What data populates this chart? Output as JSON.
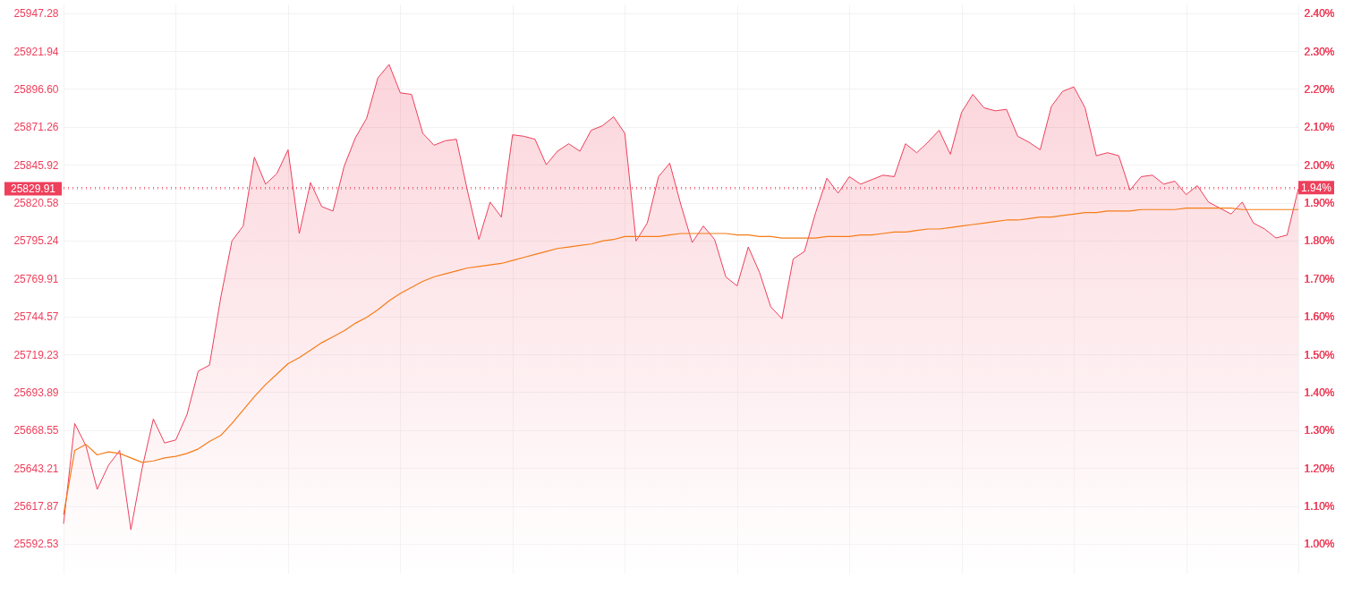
{
  "chart_data": {
    "type": "area",
    "categories": [
      null,
      null,
      null,
      null,
      null,
      null,
      null,
      null,
      null,
      null,
      null,
      null,
      null,
      null,
      null,
      null,
      null,
      null,
      null,
      null,
      null,
      null,
      null,
      null,
      null,
      null,
      null,
      null,
      null,
      null,
      null,
      null,
      null,
      null,
      null,
      null,
      null,
      null,
      null,
      null,
      null,
      null,
      null,
      null,
      null,
      null,
      null,
      null,
      null,
      null,
      null,
      null,
      null,
      null,
      null,
      null,
      null,
      null,
      null,
      null,
      null,
      null,
      null,
      null,
      null,
      null,
      null,
      null,
      null,
      null,
      null,
      null,
      null,
      null,
      null,
      null,
      null,
      null,
      null,
      null,
      null,
      null,
      null,
      null,
      null,
      null,
      null,
      null,
      null,
      null,
      null,
      null,
      null,
      null,
      null,
      null,
      null,
      null,
      null,
      null,
      null,
      null,
      null,
      null,
      null,
      null,
      null,
      null,
      null,
      null,
      null
    ],
    "ylim": [
      25572.79,
      25953.09
    ],
    "yticks": [
      25592.53,
      25617.87,
      25643.21,
      25668.55,
      25693.89,
      25719.23,
      25744.57,
      25769.91,
      25795.24,
      25820.58,
      25845.92,
      25871.26,
      {
        "value": 25896.6,
        "label": "25896.60"
      },
      25921.94,
      25947.28
    ],
    "y2lim": [
      0.9221,
      2.4229
    ],
    "y2ticks": [
      {
        "value": 1.0,
        "label": "1.00%"
      },
      {
        "value": 1.1,
        "label": "1.10%"
      },
      {
        "value": 1.2,
        "label": "1.20%"
      },
      {
        "value": 1.3,
        "label": "1.30%"
      },
      {
        "value": 1.4,
        "label": "1.40%"
      },
      {
        "value": 1.5,
        "label": "1.50%"
      },
      {
        "value": 1.6,
        "label": "1.60%"
      },
      {
        "value": 1.7,
        "label": "1.70%"
      },
      {
        "value": 1.8,
        "label": "1.80%"
      },
      {
        "value": 1.9,
        "label": "1.90%"
      },
      {
        "value": 2.0,
        "label": "2.00%"
      },
      {
        "value": 2.1,
        "label": "2.10%"
      },
      {
        "value": 2.2,
        "label": "2.20%"
      },
      {
        "value": 2.3,
        "label": "2.30%"
      },
      {
        "value": 2.4,
        "label": "2.40%"
      }
    ],
    "grid": true,
    "tick_labels": "y",
    "ref_lines": [
      {
        "axis": "y",
        "value": 25829.91,
        "label": "25829.91",
        "color": "#ee3f5b",
        "line_style": "dotted"
      },
      {
        "axis": "y2",
        "value": 1.94,
        "label": "1.94%",
        "color": "#ee3f5b",
        "line_style": "dotted"
      }
    ],
    "series": [
      {
        "color": "#ee3f5b",
        "values": [
          25606,
          25673,
          25658,
          25629,
          25645,
          25655,
          25602,
          25643,
          25676,
          25660,
          25662,
          25679,
          25708,
          25712,
          25757,
          25795,
          25805,
          25851,
          25833,
          25840,
          25856,
          25800,
          25834,
          25818,
          25815,
          25845,
          25864,
          25877,
          25904,
          25913,
          25894,
          25893,
          25867,
          25859,
          25862,
          25863,
          25828,
          25796,
          25821,
          25811,
          25866,
          25865,
          25863,
          25846,
          25855,
          25860,
          25855,
          25869,
          25872,
          25878,
          25867,
          25795,
          25807,
          25838,
          25847,
          25819,
          25794,
          25805,
          25796,
          25771,
          25765,
          25791,
          25774,
          25751,
          25743,
          25783,
          25788,
          25814,
          25837,
          25827,
          25838,
          25833,
          25836,
          25839,
          25838,
          25860,
          25854,
          25861,
          25869,
          25853,
          25881,
          25893,
          25884,
          25882,
          25883,
          25865,
          25861,
          25856,
          25885,
          25895,
          25898,
          25884,
          25852,
          25854,
          25852,
          25829,
          25838,
          25839,
          25833,
          25835,
          25826,
          25832,
          25821,
          25817,
          25813,
          25821,
          25807,
          25803,
          25797,
          25799,
          25830
        ]
      },
      {
        "type": "line",
        "color": "#f57c18",
        "values": [
          25612,
          25655,
          25659,
          25652,
          25654,
          25653,
          25650,
          25647,
          25648,
          25650,
          25651,
          25653,
          25656,
          25661,
          25665,
          25673,
          25682,
          25691,
          25699,
          25706,
          25713,
          25717,
          25722,
          25727,
          25731,
          25735,
          25740,
          25744,
          25749,
          25755,
          25760,
          25764,
          25768,
          25771,
          25773,
          25775,
          25777,
          25778,
          25779,
          25780,
          25782,
          25784,
          25786,
          25788,
          25790,
          25791,
          25792,
          25793,
          25795,
          25796,
          25798,
          25798,
          25798,
          25798,
          25799,
          25800,
          25800,
          25800,
          25800,
          25800,
          25799,
          25799,
          25798,
          25798,
          25797,
          25797,
          25797,
          25797,
          25798,
          25798,
          25798,
          25799,
          25799,
          25800,
          25801,
          25801,
          25802,
          25803,
          25803,
          25804,
          25805,
          25806,
          25807,
          25808,
          25809,
          25809,
          25810,
          25811,
          25811,
          25812,
          25813,
          25814,
          25814,
          25815,
          25815,
          25815,
          25816,
          25816,
          25816,
          25816,
          25817,
          25817,
          25817,
          25817,
          25817,
          25816,
          25816,
          25816,
          25816,
          25816,
          25816
        ]
      }
    ]
  }
}
